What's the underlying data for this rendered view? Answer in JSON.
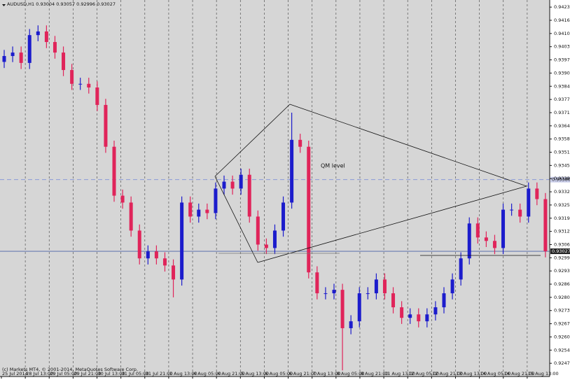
{
  "chart_data": {
    "type": "candlestick",
    "title": "AUDUSD,H1  0.93004 0.93057 0.92996 0.93027",
    "copyright": "(c) Markets MT4, © 2001-2014, MetaQuotes Software Corp.",
    "annotation": "QM level",
    "up_color": "#1c1ccc",
    "down_color": "#e0245a",
    "background": "#d6d6d6",
    "ylim": [
      0.9241,
      0.94265
    ],
    "yticks": [
      {
        "value": 0.9423,
        "label": "0.94230"
      },
      {
        "value": 0.94165,
        "label": "0.94165"
      },
      {
        "value": 0.941,
        "label": "0.94100"
      },
      {
        "value": 0.94035,
        "label": "0.94035"
      },
      {
        "value": 0.9397,
        "label": "0.93970"
      },
      {
        "value": 0.93905,
        "label": "0.93905"
      },
      {
        "value": 0.9384,
        "label": "0.93840"
      },
      {
        "value": 0.93775,
        "label": "0.93775"
      },
      {
        "value": 0.9371,
        "label": "0.93710"
      },
      {
        "value": 0.93645,
        "label": "0.93645"
      },
      {
        "value": 0.9358,
        "label": "0.93580"
      },
      {
        "value": 0.93515,
        "label": "0.93515"
      },
      {
        "value": 0.9345,
        "label": "0.93450"
      },
      {
        "value": 0.93385,
        "label": "0.93385"
      },
      {
        "value": 0.9332,
        "label": "0.93320"
      },
      {
        "value": 0.93255,
        "label": "0.93255"
      },
      {
        "value": 0.9319,
        "label": "0.93190"
      },
      {
        "value": 0.93125,
        "label": "0.93125"
      },
      {
        "value": 0.9306,
        "label": "0.93060"
      },
      {
        "value": 0.92995,
        "label": "0.92995"
      },
      {
        "value": 0.9293,
        "label": "0.92930"
      },
      {
        "value": 0.92865,
        "label": "0.92865"
      },
      {
        "value": 0.928,
        "label": "0.92800"
      },
      {
        "value": 0.92735,
        "label": "0.92735"
      },
      {
        "value": 0.9267,
        "label": "0.92670"
      },
      {
        "value": 0.92605,
        "label": "0.92605"
      },
      {
        "value": 0.9254,
        "label": "0.92540"
      },
      {
        "value": 0.92475,
        "label": "0.92475"
      }
    ],
    "level_line": {
      "value": 0.9338,
      "label": "0.93380"
    },
    "bid_line": 0.93027,
    "time_labels": [
      "25 Jul 2014",
      "28 Jul 13:00",
      "29 Jul 05:00",
      "29 Jul 21:00",
      "30 Jul 13:00",
      "31 Jul 05:00",
      "31 Jul 21:00",
      "1 Aug 13:00",
      "4 Aug 05:00",
      "4 Aug 21:00",
      "5 Aug 13:00",
      "6 Aug 05:00",
      "6 Aug 21:00",
      "7 Aug 13:00",
      "8 Aug 05:00",
      "8 Aug 21:00",
      "11 Aug 13:00",
      "12 Aug 05:00",
      "12 Aug 21:00",
      "13 Aug 13:00",
      "14 Aug 05:00",
      "14 Aug 21:00",
      "15 Aug 13:00"
    ],
    "open": [
      0.9396,
      0.93989,
      0.94006,
      0.93955,
      0.94092,
      0.9411,
      0.94058,
      0.94006,
      0.9392,
      0.93852,
      0.93852,
      0.93834,
      0.93748,
      0.93542,
      0.93301,
      0.93267,
      0.93129,
      0.92992,
      0.93026,
      0.92992,
      0.92957,
      0.92888,
      0.93267,
      0.93198,
      0.93232,
      0.93215,
      0.93336,
      0.9337,
      0.93336,
      0.93404,
      0.93198,
      0.9306,
      0.93043,
      0.93129,
      0.93267,
      0.93576,
      0.93542,
      0.92923,
      0.9282,
      0.9282,
      0.92837,
      0.92648,
      0.92682,
      0.9282,
      0.9282,
      0.92888,
      0.9282,
      0.92751,
      0.92699,
      0.92716,
      0.92682,
      0.92716,
      0.92751,
      0.9282,
      0.92888,
      0.92992,
      0.93164,
      0.93095,
      0.93078,
      0.93043,
      0.93232,
      0.93232,
      0.93198,
      0.93336,
      0.93284
    ],
    "high": [
      0.94019,
      0.94036,
      0.94036,
      0.94122,
      0.9414,
      0.9414,
      0.94088,
      0.94036,
      0.9395,
      0.93882,
      0.93882,
      0.93864,
      0.93778,
      0.93572,
      0.93331,
      0.93297,
      0.93159,
      0.93056,
      0.93056,
      0.93022,
      0.92987,
      0.93297,
      0.93297,
      0.93262,
      0.93262,
      0.93366,
      0.934,
      0.934,
      0.93434,
      0.93434,
      0.93228,
      0.9309,
      0.93159,
      0.93297,
      0.9371,
      0.93606,
      0.93572,
      0.92953,
      0.9285,
      0.92867,
      0.92867,
      0.92712,
      0.9285,
      0.9285,
      0.92918,
      0.92918,
      0.9285,
      0.92781,
      0.92746,
      0.92746,
      0.92746,
      0.92781,
      0.9285,
      0.92918,
      0.93022,
      0.93194,
      0.93194,
      0.93125,
      0.93108,
      0.93262,
      0.93262,
      0.93262,
      0.93366,
      0.93366,
      0.93314
    ],
    "low": [
      0.9393,
      0.93959,
      0.93925,
      0.93925,
      0.94062,
      0.94028,
      0.93976,
      0.9389,
      0.93822,
      0.93822,
      0.93804,
      0.93718,
      0.93512,
      0.93271,
      0.93237,
      0.93099,
      0.92962,
      0.92962,
      0.92962,
      0.92927,
      0.928,
      0.92858,
      0.93168,
      0.93168,
      0.93185,
      0.93185,
      0.93306,
      0.93306,
      0.93306,
      0.93168,
      0.9303,
      0.93013,
      0.93013,
      0.93099,
      0.93237,
      0.93512,
      0.92893,
      0.9279,
      0.9279,
      0.9279,
      0.9244,
      0.92618,
      0.92652,
      0.9279,
      0.9279,
      0.9279,
      0.92721,
      0.92669,
      0.92669,
      0.92652,
      0.92652,
      0.92686,
      0.92721,
      0.9279,
      0.92858,
      0.92962,
      0.93065,
      0.93048,
      0.93013,
      0.93013,
      0.93202,
      0.93168,
      0.93168,
      0.93254,
      0.92997
    ],
    "close": [
      0.93989,
      0.94006,
      0.93955,
      0.94092,
      0.9411,
      0.94058,
      0.94006,
      0.9392,
      0.93852,
      0.93852,
      0.93834,
      0.93748,
      0.93542,
      0.93301,
      0.93267,
      0.93129,
      0.92992,
      0.93026,
      0.92992,
      0.92957,
      0.92888,
      0.93267,
      0.93198,
      0.93232,
      0.93215,
      0.93336,
      0.9337,
      0.93336,
      0.93404,
      0.93198,
      0.9306,
      0.93043,
      0.93129,
      0.93267,
      0.93576,
      0.93542,
      0.92923,
      0.9282,
      0.9282,
      0.92837,
      0.92648,
      0.92682,
      0.9282,
      0.9282,
      0.92888,
      0.9282,
      0.92751,
      0.92699,
      0.92716,
      0.92682,
      0.92716,
      0.92751,
      0.9282,
      0.92888,
      0.92992,
      0.93164,
      0.93095,
      0.93078,
      0.93043,
      0.93232,
      0.93232,
      0.93198,
      0.93336,
      0.93284,
      0.93027
    ]
  }
}
